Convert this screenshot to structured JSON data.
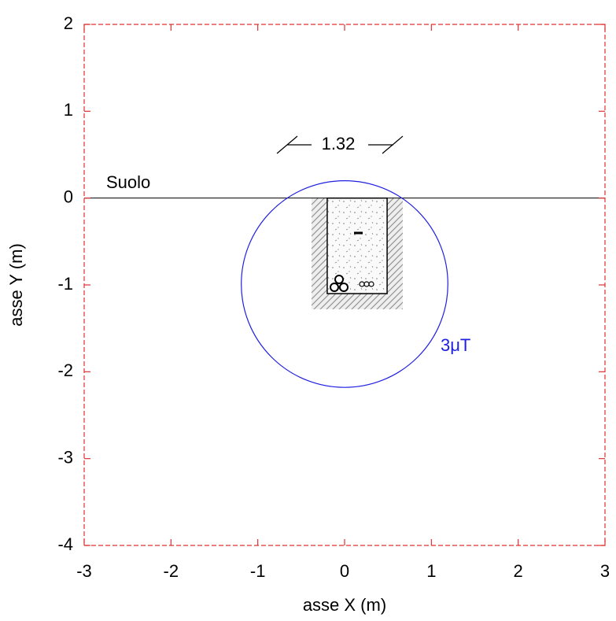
{
  "chart_data": {
    "type": "field-section",
    "xlabel": "asse X (m)",
    "ylabel": "asse Y (m)",
    "xlim": [
      -3,
      3
    ],
    "ylim": [
      -4,
      2
    ],
    "xticks": [
      -3,
      -2,
      -1,
      0,
      1,
      2,
      3
    ],
    "yticks": [
      -4,
      -3,
      -2,
      -1,
      0,
      1,
      2
    ],
    "frame_color": "#e03030",
    "ground": {
      "label": "Suolo",
      "y": 0
    },
    "dimension_label": "1.32",
    "contour": {
      "label": "3μT",
      "color": "#2020e0",
      "center": [
        0,
        -0.99
      ],
      "radius": 1.19
    },
    "trench": {
      "x": [
        -0.2,
        0.49
      ],
      "bottom": -1.1
    },
    "backfill": {
      "x": [
        -0.38,
        0.67
      ],
      "bottom": -1.28
    }
  }
}
